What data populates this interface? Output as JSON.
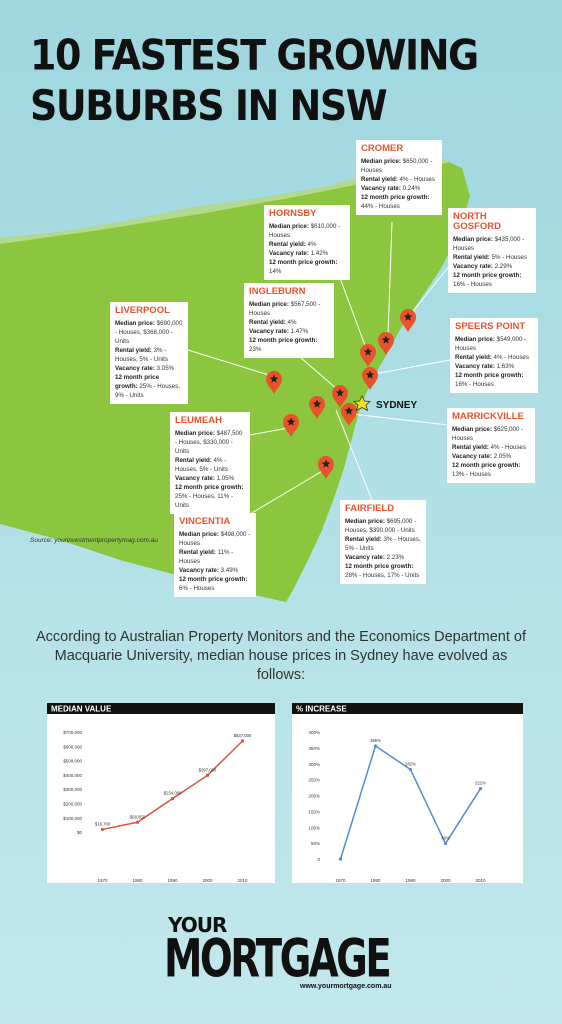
{
  "title_lines": [
    "10 FASTEST GROWING",
    "SUBURBS IN NSW"
  ],
  "suburbs": [
    {
      "name": "CROMER",
      "rows": [
        {
          "label": "Median price:",
          "text": "$650,000 - Houses"
        },
        {
          "label": "Rental yield:",
          "text": "4% - Houses"
        },
        {
          "label": "Vacancy rate:",
          "text": "0.24%"
        },
        {
          "label": "12 month price growth:",
          "text": "44% - Houses"
        }
      ]
    },
    {
      "name": "HORNSBY",
      "rows": [
        {
          "label": "Median price:",
          "text": "$610,000 - Houses"
        },
        {
          "label": "Rental yield:",
          "text": "4%"
        },
        {
          "label": "Vacancy rate:",
          "text": "1.42%"
        },
        {
          "label": "12 month price growth:",
          "text": "14%"
        }
      ]
    },
    {
      "name": "NORTH GOSFORD",
      "rows": [
        {
          "label": "Median price:",
          "text": "$435,000 - Houses"
        },
        {
          "label": "Rental yield:",
          "text": "5% - Houses"
        },
        {
          "label": "Vacancy rate:",
          "text": "2.29%"
        },
        {
          "label": "12 month price growth:",
          "text": "16% - Houses"
        }
      ]
    },
    {
      "name": "INGLEBURN",
      "rows": [
        {
          "label": "Median price:",
          "text": "$567,500 - Houses"
        },
        {
          "label": "Rental yield:",
          "text": "4%"
        },
        {
          "label": "Vacancy rate:",
          "text": "1.47%"
        },
        {
          "label": "12 month price growth:",
          "text": "23%"
        }
      ]
    },
    {
      "name": "LIVERPOOL",
      "rows": [
        {
          "label": "Median price:",
          "text": "$690,000 - Houses, $368,000 - Units"
        },
        {
          "label": "Rental yield:",
          "text": "3% - Houses, 5% - Units"
        },
        {
          "label": "Vacancy rate:",
          "text": "3.05%"
        },
        {
          "label": "12 month price growth:",
          "text": "25% - Houses, 9% - Units"
        }
      ]
    },
    {
      "name": "SPEERS POINT",
      "rows": [
        {
          "label": "Median price:",
          "text": "$549,000 - Houses"
        },
        {
          "label": "Rental yield:",
          "text": "4% - Houses"
        },
        {
          "label": "Vacancy rate:",
          "text": "1.63%"
        },
        {
          "label": "12 month price growth:",
          "text": "16% - Houses"
        }
      ]
    },
    {
      "name": "MARRICKVILLE",
      "rows": [
        {
          "label": "Median price:",
          "text": "$625,000 - Houses"
        },
        {
          "label": "Rental yield:",
          "text": "4% - Houses"
        },
        {
          "label": "Vacancy rate:",
          "text": "2.05%"
        },
        {
          "label": "12 month price growth:",
          "text": "13% - Houses"
        }
      ]
    },
    {
      "name": "LEUMEAH",
      "rows": [
        {
          "label": "Median price:",
          "text": "$487,500 - Houses, $330,000 - Units"
        },
        {
          "label": "Rental yield:",
          "text": "4% - Houses, 5% - Units"
        },
        {
          "label": "Vacancy rate:",
          "text": "1.05%"
        },
        {
          "label": "12 month price growth:",
          "text": "25% - Houses, 11% - Units"
        }
      ]
    },
    {
      "name": "FAIRFIELD",
      "rows": [
        {
          "label": "Median price:",
          "text": "$695,000 - Houses, $390,000 - Units"
        },
        {
          "label": "Rental yield:",
          "text": "3% - Houses, 5% - Units"
        },
        {
          "label": "Vacancy rate:",
          "text": "2.23%"
        },
        {
          "label": "12 month price growth:",
          "text": "28% - Houses, 17% - Units"
        }
      ]
    },
    {
      "name": "VINCENTIA",
      "rows": [
        {
          "label": "Median price:",
          "text": "$498,000 - Houses"
        },
        {
          "label": "Rental yield:",
          "text": "11% - Houses"
        },
        {
          "label": "Vacancy rate:",
          "text": "3.49%"
        },
        {
          "label": "12 month price growth:",
          "text": "6% - Houses"
        }
      ]
    }
  ],
  "city_label": "SYDNEY",
  "source": "Source: yourinvestmentpropertymag.com.au",
  "intro": "According to Australian Property Monitors and the Economics Department of Macquarie University, median house prices in Sydney have evolved as follows:",
  "chart_data": [
    {
      "type": "line",
      "title": "MEDIAN VALUE",
      "color": "#d9533b",
      "categories": [
        "1970",
        "1980",
        "1990",
        "2000",
        "2010"
      ],
      "values": [
        18700,
        68850,
        234000,
        397000,
        637000
      ],
      "value_labels": [
        "$18,700",
        "$68,850",
        "$234,000",
        "$397,000",
        "$637,000"
      ],
      "ylim": [
        -300000,
        700000
      ],
      "yticks": [
        {
          "value": 0,
          "label": "$0"
        },
        {
          "value": 100000,
          "label": "$100,000"
        },
        {
          "value": 200000,
          "label": "$200,000"
        },
        {
          "value": 300000,
          "label": "$300,000"
        },
        {
          "value": 400000,
          "label": "$400,000"
        },
        {
          "value": 500000,
          "label": "$500,000"
        },
        {
          "value": 600000,
          "label": "$600,000"
        },
        {
          "value": 700000,
          "label": "$700,000"
        }
      ]
    },
    {
      "type": "line",
      "title": "% INCREASE",
      "color": "#4f8fd0",
      "categories": [
        "1970",
        "1980",
        "1990",
        "2000",
        "2010"
      ],
      "values": [
        0,
        356,
        282,
        49,
        222
      ],
      "value_labels": [
        null,
        "356%",
        "282%",
        "49%",
        "222%"
      ],
      "ylim": [
        -50,
        400
      ],
      "yticks": [
        0,
        {
          "value": 50,
          "label": "50%"
        },
        {
          "value": 100,
          "label": "100%"
        },
        {
          "value": 150,
          "label": "150%"
        },
        {
          "value": 200,
          "label": "200%"
        },
        {
          "value": 250,
          "label": "250%"
        },
        {
          "value": 300,
          "label": "300%"
        },
        {
          "value": 350,
          "label": "350%"
        },
        {
          "value": 400,
          "label": "400%"
        }
      ]
    }
  ],
  "footer": {
    "brand_top": "YOUR",
    "brand_main": "MORTGAGE",
    "url": "www.yourmortgage.com.au"
  }
}
